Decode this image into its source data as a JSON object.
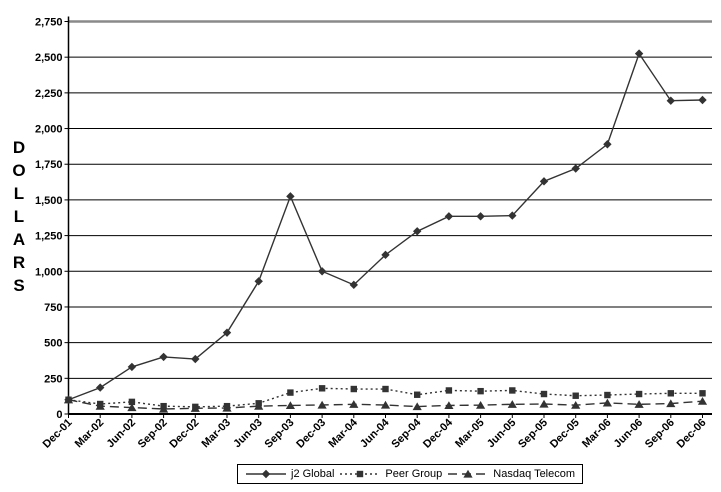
{
  "chart_data": {
    "type": "line",
    "title": "",
    "xlabel": "",
    "ylabel": "DOLLARS",
    "ylim": [
      0,
      2750
    ],
    "ytick_step": 250,
    "grid": true,
    "legend_position": "bottom",
    "categories": [
      "Dec-01",
      "Mar-02",
      "Jun-02",
      "Sep-02",
      "Dec-02",
      "Mar-03",
      "Jun-03",
      "Sep-03",
      "Dec-03",
      "Mar-04",
      "Jun-04",
      "Sep-04",
      "Dec-04",
      "Mar-05",
      "Jun-05",
      "Sep-05",
      "Dec-05",
      "Mar-06",
      "Jun-06",
      "Sep-06",
      "Dec-06"
    ],
    "series": [
      {
        "name": "j2 Global",
        "line": "solid",
        "marker": "diamond",
        "values": [
          100,
          185,
          330,
          400,
          385,
          570,
          930,
          1525,
          1000,
          905,
          1115,
          1280,
          1385,
          1385,
          1390,
          1630,
          1720,
          1890,
          2525,
          2195,
          2200
        ]
      },
      {
        "name": "Peer Group",
        "line": "dotted",
        "marker": "square",
        "values": [
          100,
          70,
          85,
          55,
          50,
          55,
          75,
          150,
          180,
          175,
          175,
          135,
          165,
          160,
          165,
          140,
          128,
          133,
          140,
          145,
          145
        ]
      },
      {
        "name": "Nasdaq Telecom",
        "line": "dashed",
        "marker": "triangle",
        "values": [
          100,
          55,
          45,
          35,
          40,
          42,
          55,
          60,
          63,
          68,
          63,
          52,
          60,
          62,
          68,
          70,
          62,
          78,
          68,
          73,
          90
        ]
      }
    ],
    "colors": {
      "series_color": "#333333",
      "gridline": "#000000",
      "top_gridline": "#8a8a8a",
      "background": "#ffffff"
    }
  }
}
